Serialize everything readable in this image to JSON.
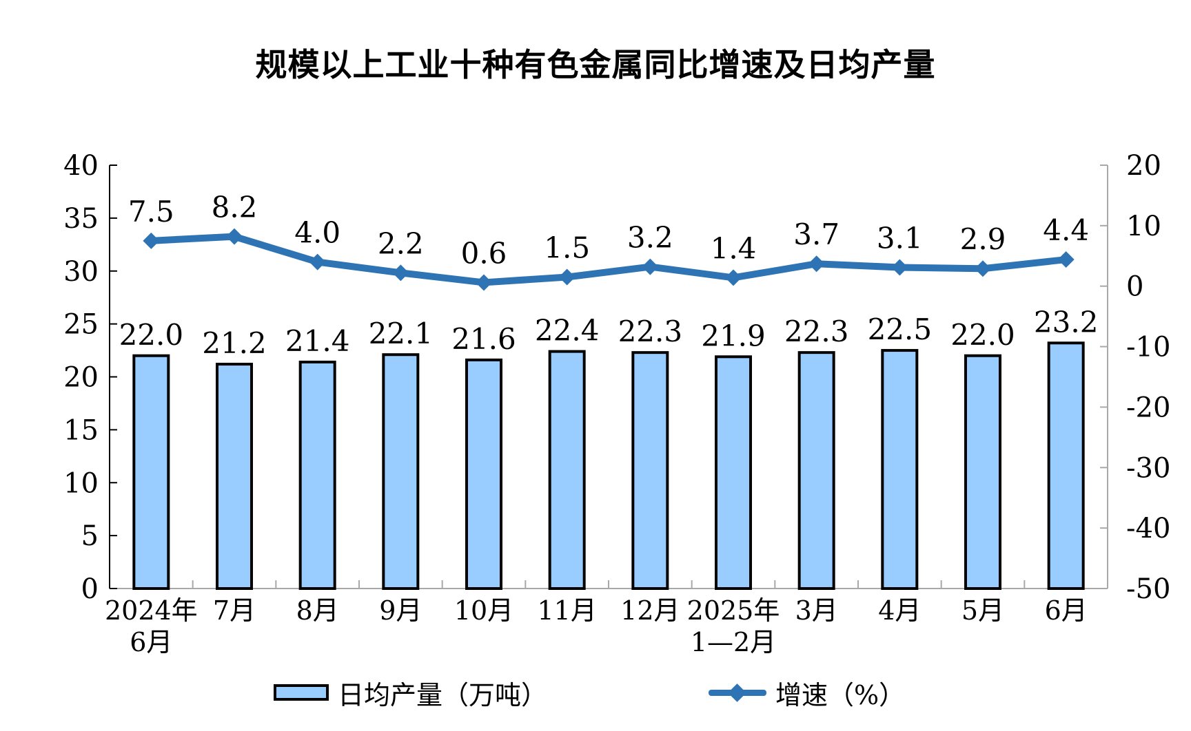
{
  "title": "规模以上工业十种有色金属同比增速及日均产量",
  "colors": {
    "bar_fill": "#99CCFF",
    "bar_border": "#000000",
    "line": "#2E74B5",
    "axis_gray": "#A8A8A8",
    "axis_black": "#000000",
    "text": "#000000"
  },
  "legend": {
    "bar_label": "日均产量（万吨）",
    "line_label": "增速（%）"
  },
  "chart_data": {
    "type": "bar+line combo",
    "title": "规模以上工业十种有色金属同比增速及日均产量",
    "categories": [
      [
        "2024年",
        "6月"
      ],
      [
        "7月"
      ],
      [
        "8月"
      ],
      [
        "9月"
      ],
      [
        "10月"
      ],
      [
        "11月"
      ],
      [
        "12月"
      ],
      [
        "2025年",
        "1—2月"
      ],
      [
        "3月"
      ],
      [
        "4月"
      ],
      [
        "5月"
      ],
      [
        "6月"
      ]
    ],
    "series": [
      {
        "name": "日均产量（万吨）",
        "type": "bar",
        "axis": "left",
        "values": [
          22.0,
          21.2,
          21.4,
          22.1,
          21.6,
          22.4,
          22.3,
          21.9,
          22.3,
          22.5,
          22.0,
          23.2
        ]
      },
      {
        "name": "增速（%）",
        "type": "line",
        "axis": "right",
        "values": [
          7.5,
          8.2,
          4.0,
          2.2,
          0.6,
          1.5,
          3.2,
          1.4,
          3.7,
          3.1,
          2.9,
          4.4
        ]
      }
    ],
    "left_axis": {
      "min": 0,
      "max": 40,
      "ticks": [
        0,
        5,
        10,
        15,
        20,
        25,
        30,
        35,
        40
      ]
    },
    "right_axis": {
      "min": -50,
      "max": 20,
      "ticks": [
        -50,
        -40,
        -30,
        -20,
        -10,
        0,
        10,
        20
      ]
    },
    "grid": false,
    "data_labels": true,
    "legend_position": "bottom"
  }
}
